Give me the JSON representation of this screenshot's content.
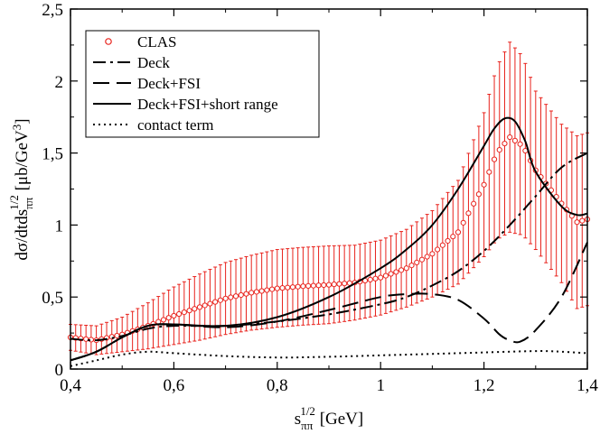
{
  "chart_data": {
    "type": "line",
    "xlabel": "s_ππ^1/2 [GeV]",
    "ylabel": "dσ/dtds_ππ^1/2 [μb/GeV^3]",
    "xlim": [
      0.4,
      1.4
    ],
    "ylim": [
      0,
      2.5
    ],
    "x_ticks": [
      "0,4",
      "0,6",
      "0,8",
      "1",
      "1,2",
      "1,4"
    ],
    "y_ticks": [
      "0",
      "0,5",
      "1",
      "1,5",
      "2",
      "2,5"
    ],
    "legend_position": "top-left",
    "series": [
      {
        "name": "CLAS",
        "style": "open-circles-with-error-bars",
        "color": "#e8221c",
        "x": [
          0.4,
          0.45,
          0.5,
          0.55,
          0.6,
          0.65,
          0.7,
          0.75,
          0.8,
          0.85,
          0.9,
          0.95,
          1.0,
          1.05,
          1.1,
          1.15,
          1.2,
          1.225,
          1.25,
          1.275,
          1.3,
          1.35,
          1.38,
          1.4
        ],
        "y": [
          0.22,
          0.2,
          0.24,
          0.3,
          0.37,
          0.43,
          0.49,
          0.53,
          0.56,
          0.575,
          0.585,
          0.6,
          0.635,
          0.7,
          0.8,
          0.95,
          1.28,
          1.5,
          1.61,
          1.55,
          1.38,
          1.15,
          1.02,
          1.04
        ],
        "err": [
          0.09,
          0.1,
          0.12,
          0.16,
          0.2,
          0.23,
          0.25,
          0.26,
          0.27,
          0.27,
          0.27,
          0.26,
          0.26,
          0.27,
          0.3,
          0.36,
          0.5,
          0.6,
          0.66,
          0.62,
          0.55,
          0.55,
          0.6,
          0.6
        ]
      },
      {
        "name": "Deck",
        "style": "dash-dot",
        "color": "#000000",
        "x": [
          0.4,
          0.45,
          0.5,
          0.55,
          0.6,
          0.7,
          0.8,
          0.9,
          1.0,
          1.05,
          1.1,
          1.15,
          1.2,
          1.25,
          1.3,
          1.35,
          1.4
        ],
        "y": [
          0.21,
          0.2,
          0.23,
          0.28,
          0.3,
          0.3,
          0.33,
          0.38,
          0.45,
          0.5,
          0.58,
          0.68,
          0.82,
          1.0,
          1.2,
          1.4,
          1.5
        ]
      },
      {
        "name": "Deck+FSI",
        "style": "dashed",
        "color": "#000000",
        "x": [
          0.4,
          0.45,
          0.5,
          0.55,
          0.6,
          0.7,
          0.8,
          0.9,
          1.0,
          1.05,
          1.1,
          1.15,
          1.2,
          1.23,
          1.25,
          1.27,
          1.3,
          1.35,
          1.4
        ],
        "y": [
          0.06,
          0.12,
          0.22,
          0.3,
          0.31,
          0.29,
          0.33,
          0.41,
          0.5,
          0.52,
          0.52,
          0.48,
          0.35,
          0.24,
          0.2,
          0.19,
          0.27,
          0.5,
          0.88
        ]
      },
      {
        "name": "Deck+FSI+short range",
        "style": "solid",
        "color": "#000000",
        "x": [
          0.4,
          0.45,
          0.5,
          0.55,
          0.6,
          0.7,
          0.8,
          0.9,
          1.0,
          1.05,
          1.1,
          1.15,
          1.2,
          1.22,
          1.24,
          1.26,
          1.28,
          1.3,
          1.35,
          1.38,
          1.4
        ],
        "y": [
          0.06,
          0.12,
          0.22,
          0.3,
          0.31,
          0.3,
          0.36,
          0.5,
          0.7,
          0.83,
          1.0,
          1.25,
          1.55,
          1.67,
          1.74,
          1.72,
          1.58,
          1.37,
          1.13,
          1.07,
          1.08
        ]
      },
      {
        "name": "contact term",
        "style": "dotted",
        "color": "#000000",
        "x": [
          0.4,
          0.45,
          0.5,
          0.55,
          0.6,
          0.7,
          0.8,
          0.9,
          1.0,
          1.1,
          1.2,
          1.3,
          1.35,
          1.4
        ],
        "y": [
          0.02,
          0.06,
          0.1,
          0.12,
          0.11,
          0.09,
          0.08,
          0.085,
          0.095,
          0.105,
          0.115,
          0.125,
          0.12,
          0.11
        ]
      }
    ]
  }
}
